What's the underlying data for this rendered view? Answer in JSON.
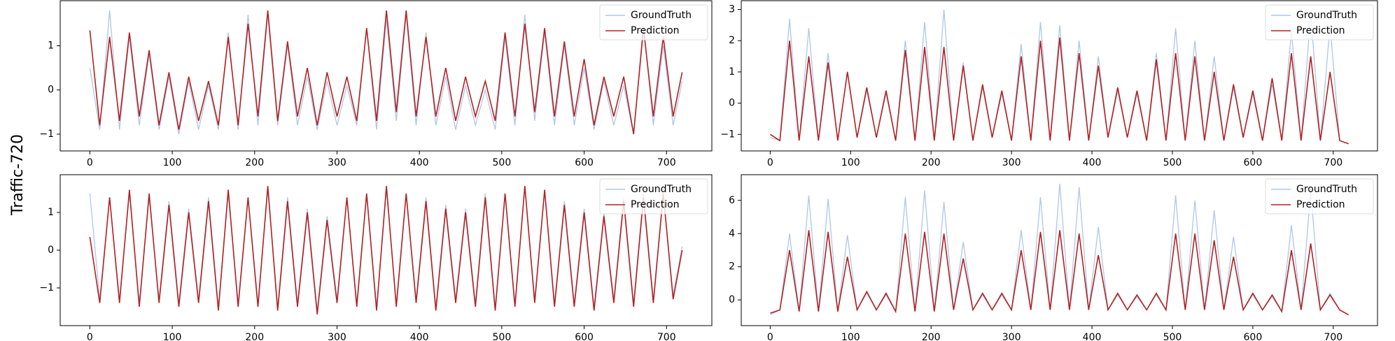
{
  "figure_label": "Traffic-720",
  "chart_data": [
    {
      "type": "line",
      "xlim": [
        -36,
        755
      ],
      "ylim": [
        -1.38,
        2.02
      ],
      "xticks": [
        0,
        100,
        200,
        300,
        400,
        500,
        600,
        700
      ],
      "yticks": [
        {
          "value": -1,
          "label": "−1"
        },
        0,
        1
      ],
      "legend": "upper right",
      "x": [
        0,
        12,
        24,
        36,
        48,
        60,
        72,
        84,
        96,
        108,
        120,
        132,
        144,
        156,
        168,
        180,
        192,
        204,
        216,
        228,
        240,
        252,
        264,
        276,
        288,
        300,
        312,
        324,
        336,
        348,
        360,
        372,
        384,
        396,
        408,
        420,
        432,
        444,
        456,
        468,
        480,
        492,
        504,
        516,
        528,
        540,
        552,
        564,
        576,
        588,
        600,
        612,
        624,
        636,
        648,
        660,
        672,
        684,
        696,
        708,
        719
      ],
      "series": [
        {
          "name": "GroundTruth",
          "color": "#aec7e8",
          "values": [
            0.5,
            -0.9,
            1.8,
            -0.9,
            1.2,
            -0.8,
            0.8,
            -0.9,
            0.3,
            -1.0,
            0.2,
            -0.9,
            0.1,
            -0.9,
            1.3,
            -0.9,
            1.7,
            -0.8,
            1.7,
            -0.8,
            1.0,
            -0.8,
            0.3,
            -0.9,
            0.2,
            -0.8,
            0.1,
            -0.8,
            1.4,
            -0.9,
            1.6,
            -0.7,
            1.7,
            -0.8,
            1.3,
            -0.8,
            0.3,
            -0.9,
            0.1,
            -0.8,
            0.0,
            -0.9,
            1.2,
            -0.8,
            1.7,
            -0.7,
            1.3,
            -0.8,
            1.0,
            -0.8,
            0.5,
            -0.9,
            0.2,
            -0.8,
            0.1,
            -1.0,
            1.5,
            -0.8,
            1.0,
            -0.8,
            0.2
          ]
        },
        {
          "name": "Prediction",
          "color": "#b22222",
          "values": [
            1.35,
            -0.8,
            1.2,
            -0.7,
            1.3,
            -0.6,
            0.9,
            -0.8,
            0.4,
            -0.9,
            0.3,
            -0.7,
            0.2,
            -0.8,
            1.2,
            -0.8,
            1.5,
            -0.6,
            1.8,
            -0.7,
            1.1,
            -0.6,
            0.5,
            -0.8,
            0.4,
            -0.6,
            0.3,
            -0.7,
            1.4,
            -0.7,
            1.8,
            -0.5,
            1.8,
            -0.6,
            1.2,
            -0.6,
            0.5,
            -0.7,
            0.3,
            -0.6,
            0.2,
            -0.7,
            1.3,
            -0.6,
            1.5,
            -0.5,
            1.4,
            -0.6,
            1.1,
            -0.6,
            0.7,
            -0.8,
            0.3,
            -0.6,
            0.3,
            -1.0,
            1.4,
            -0.6,
            1.2,
            -0.6,
            0.4
          ]
        }
      ]
    },
    {
      "type": "line",
      "xlim": [
        -36,
        755
      ],
      "ylim": [
        -1.53,
        3.28
      ],
      "xticks": [
        0,
        100,
        200,
        300,
        400,
        500,
        600,
        700
      ],
      "yticks": [
        {
          "value": -1,
          "label": "−1"
        },
        0,
        1,
        2,
        3
      ],
      "legend": "upper right",
      "x": [
        0,
        12,
        24,
        36,
        48,
        60,
        72,
        84,
        96,
        108,
        120,
        132,
        144,
        156,
        168,
        180,
        192,
        204,
        216,
        228,
        240,
        252,
        264,
        276,
        288,
        300,
        312,
        324,
        336,
        348,
        360,
        372,
        384,
        396,
        408,
        420,
        432,
        444,
        456,
        468,
        480,
        492,
        504,
        516,
        528,
        540,
        552,
        564,
        576,
        588,
        600,
        612,
        624,
        636,
        648,
        660,
        672,
        684,
        696,
        708,
        719
      ],
      "series": [
        {
          "name": "GroundTruth",
          "color": "#aec7e8",
          "values": [
            -1.1,
            -1.2,
            2.7,
            -1.2,
            2.4,
            -1.2,
            1.6,
            -1.2,
            1.0,
            -1.1,
            0.4,
            -1.1,
            0.3,
            -1.2,
            2.0,
            -1.2,
            2.6,
            -1.2,
            3.0,
            -1.2,
            1.3,
            -1.2,
            0.5,
            -1.1,
            0.3,
            -1.2,
            1.9,
            -1.2,
            2.6,
            -1.2,
            2.5,
            -1.2,
            2.0,
            -1.2,
            1.5,
            -1.1,
            0.4,
            -1.1,
            0.3,
            -1.2,
            1.6,
            -1.2,
            2.4,
            -1.2,
            2.0,
            -1.2,
            1.5,
            -1.2,
            0.5,
            -1.1,
            0.3,
            -1.2,
            0.6,
            -1.2,
            2.3,
            -1.2,
            2.9,
            -1.2,
            2.5,
            -1.2,
            -1.3
          ]
        },
        {
          "name": "Prediction",
          "color": "#b22222",
          "values": [
            -1.0,
            -1.2,
            2.0,
            -1.2,
            1.5,
            -1.2,
            1.3,
            -1.2,
            1.0,
            -1.1,
            0.5,
            -1.1,
            0.4,
            -1.2,
            1.7,
            -1.2,
            1.8,
            -1.2,
            1.8,
            -1.2,
            1.2,
            -1.2,
            0.6,
            -1.1,
            0.4,
            -1.2,
            1.5,
            -1.2,
            2.0,
            -1.2,
            2.1,
            -1.2,
            1.6,
            -1.2,
            1.2,
            -1.1,
            0.5,
            -1.1,
            0.4,
            -1.2,
            1.4,
            -1.2,
            1.6,
            -1.2,
            1.5,
            -1.2,
            1.0,
            -1.2,
            0.6,
            -1.1,
            0.4,
            -1.2,
            0.8,
            -1.2,
            1.6,
            -1.2,
            1.5,
            -1.2,
            1.0,
            -1.2,
            -1.3
          ]
        }
      ]
    },
    {
      "type": "line",
      "xlim": [
        -36,
        755
      ],
      "ylim": [
        -2.0,
        2.0
      ],
      "xticks": [
        0,
        100,
        200,
        300,
        400,
        500,
        600,
        700
      ],
      "yticks": [
        {
          "value": -1,
          "label": "−1"
        },
        0,
        1
      ],
      "legend": "upper right",
      "x": [
        0,
        12,
        24,
        36,
        48,
        60,
        72,
        84,
        96,
        108,
        120,
        132,
        144,
        156,
        168,
        180,
        192,
        204,
        216,
        228,
        240,
        252,
        264,
        276,
        288,
        300,
        312,
        324,
        336,
        348,
        360,
        372,
        384,
        396,
        408,
        420,
        432,
        444,
        456,
        468,
        480,
        492,
        504,
        516,
        528,
        540,
        552,
        564,
        576,
        588,
        600,
        612,
        624,
        636,
        648,
        660,
        672,
        684,
        696,
        708,
        719
      ],
      "series": [
        {
          "name": "GroundTruth",
          "color": "#aec7e8",
          "values": [
            1.5,
            -1.3,
            1.4,
            -1.3,
            1.5,
            -1.4,
            1.4,
            -1.3,
            1.3,
            -1.4,
            1.1,
            -1.3,
            1.4,
            -1.5,
            1.5,
            -1.4,
            1.4,
            -1.4,
            1.6,
            -1.5,
            1.4,
            -1.4,
            1.1,
            -1.6,
            0.9,
            -1.3,
            1.4,
            -1.4,
            1.5,
            -1.5,
            1.6,
            -1.4,
            1.5,
            -1.3,
            1.4,
            -1.5,
            1.2,
            -1.3,
            1.1,
            -1.4,
            1.5,
            -1.5,
            1.5,
            -1.4,
            1.7,
            -1.3,
            1.6,
            -1.4,
            1.3,
            -1.4,
            1.1,
            -1.5,
            1.0,
            -1.3,
            1.4,
            -1.4,
            1.5,
            -1.3,
            1.5,
            -1.2,
            0.1
          ]
        },
        {
          "name": "Prediction",
          "color": "#b22222",
          "values": [
            0.35,
            -1.4,
            1.4,
            -1.4,
            1.6,
            -1.5,
            1.5,
            -1.4,
            1.2,
            -1.5,
            1.0,
            -1.4,
            1.3,
            -1.6,
            1.6,
            -1.5,
            1.4,
            -1.5,
            1.7,
            -1.6,
            1.3,
            -1.5,
            1.0,
            -1.7,
            0.8,
            -1.4,
            1.4,
            -1.5,
            1.5,
            -1.6,
            1.7,
            -1.5,
            1.5,
            -1.4,
            1.3,
            -1.6,
            1.1,
            -1.4,
            1.0,
            -1.5,
            1.4,
            -1.6,
            1.5,
            -1.5,
            1.7,
            -1.4,
            1.6,
            -1.5,
            1.2,
            -1.5,
            1.0,
            -1.6,
            0.9,
            -1.4,
            1.3,
            -1.5,
            1.4,
            -1.4,
            1.5,
            -1.3,
            0.0
          ]
        }
      ]
    },
    {
      "type": "line",
      "xlim": [
        -36,
        755
      ],
      "ylim": [
        -1.55,
        7.55
      ],
      "xticks": [
        0,
        100,
        200,
        300,
        400,
        500,
        600,
        700
      ],
      "yticks": [
        0,
        2,
        4,
        6
      ],
      "legend": "upper right",
      "x": [
        0,
        12,
        24,
        36,
        48,
        60,
        72,
        84,
        96,
        108,
        120,
        132,
        144,
        156,
        168,
        180,
        192,
        204,
        216,
        228,
        240,
        252,
        264,
        276,
        288,
        300,
        312,
        324,
        336,
        348,
        360,
        372,
        384,
        396,
        408,
        420,
        432,
        444,
        456,
        468,
        480,
        492,
        504,
        516,
        528,
        540,
        552,
        564,
        576,
        588,
        600,
        612,
        624,
        636,
        648,
        660,
        672,
        684,
        696,
        708,
        719
      ],
      "series": [
        {
          "name": "GroundTruth",
          "color": "#aec7e8",
          "values": [
            -0.9,
            -0.6,
            4.0,
            -0.7,
            6.3,
            -0.7,
            6.1,
            -0.7,
            3.9,
            -0.6,
            0.4,
            -0.6,
            0.3,
            -0.7,
            6.2,
            -0.7,
            6.6,
            -0.7,
            5.9,
            -0.6,
            3.5,
            -0.6,
            0.3,
            -0.6,
            0.3,
            -0.6,
            4.2,
            -0.6,
            6.2,
            -0.6,
            7.0,
            -0.6,
            6.8,
            -0.6,
            4.4,
            -0.6,
            0.3,
            -0.6,
            0.2,
            -0.6,
            0.3,
            -0.6,
            6.3,
            -0.6,
            6.0,
            -0.6,
            5.4,
            -0.6,
            3.8,
            -0.6,
            0.3,
            -0.6,
            0.2,
            -0.7,
            4.5,
            -0.6,
            6.6,
            -0.6,
            0.4,
            -0.6,
            -0.9
          ]
        },
        {
          "name": "Prediction",
          "color": "#b22222",
          "values": [
            -0.8,
            -0.6,
            3.0,
            -0.7,
            4.2,
            -0.7,
            4.1,
            -0.7,
            2.6,
            -0.6,
            0.5,
            -0.6,
            0.4,
            -0.7,
            4.0,
            -0.7,
            4.1,
            -0.7,
            4.0,
            -0.6,
            2.5,
            -0.6,
            0.4,
            -0.6,
            0.4,
            -0.6,
            3.0,
            -0.6,
            4.1,
            -0.6,
            4.2,
            -0.6,
            4.0,
            -0.6,
            2.7,
            -0.6,
            0.4,
            -0.6,
            0.3,
            -0.6,
            0.4,
            -0.6,
            4.0,
            -0.6,
            4.0,
            -0.6,
            3.6,
            -0.6,
            2.6,
            -0.6,
            0.4,
            -0.6,
            0.3,
            -0.7,
            3.0,
            -0.6,
            3.4,
            -0.6,
            0.3,
            -0.6,
            -0.9
          ]
        }
      ]
    }
  ]
}
